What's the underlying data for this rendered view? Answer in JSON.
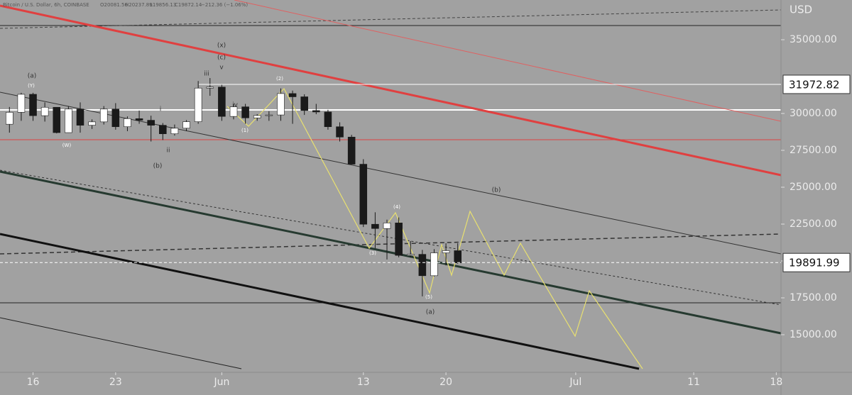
{
  "chart_data": {
    "type": "candlestick",
    "header": {
      "symbol": "Bitcoin / U.S. Dollar, 6h, COINBASE",
      "open": "O20081.56",
      "high": "H20237.89",
      "low": "L19856.13",
      "close": "C19872.14",
      "change": "−212.36 (−1.06%)"
    },
    "y_axis_label": "USD",
    "price_labels": [
      {
        "value": 31972.82,
        "label": "31972.82"
      },
      {
        "value": 19891.99,
        "label": "19891.99"
      }
    ],
    "annotations": [
      "(x)",
      "(c)",
      "v",
      "iii",
      "iv",
      "(2)",
      "(1)",
      "(3)",
      "(4)",
      "(5)",
      "(a)",
      "(b)",
      "(a)",
      "(b)",
      "(Y)",
      "(W)",
      "i",
      "ii"
    ],
    "x": [
      134,
      135,
      136,
      137,
      138,
      139,
      140,
      141,
      142,
      143,
      144,
      145,
      146,
      147,
      148,
      149,
      150,
      151,
      152,
      153,
      154,
      155,
      156,
      157,
      158,
      159,
      160,
      161,
      162,
      163,
      164,
      165,
      166,
      167,
      168,
      169,
      170,
      171,
      172
    ],
    "open": [
      29270,
      30080,
      31300,
      29850,
      30420,
      28700,
      30300,
      29200,
      29430,
      30300,
      29100,
      29650,
      29540,
      29200,
      28620,
      29000,
      29440,
      31720,
      31790,
      29800,
      30450,
      29700,
      29860,
      29900,
      31350,
      31130,
      30200,
      30100,
      29100,
      28400,
      26560,
      22490,
      22200,
      22580,
      20380,
      20450,
      19000,
      20550,
      20700
    ],
    "high": [
      30440,
      31400,
      31400,
      30750,
      30430,
      30500,
      30750,
      29600,
      30500,
      30700,
      29800,
      30200,
      29850,
      29350,
      29250,
      29550,
      32200,
      32400,
      31950,
      30650,
      30650,
      29950,
      30150,
      31700,
      31550,
      31300,
      30650,
      30250,
      29400,
      28550,
      26900,
      23300,
      22800,
      22950,
      21350,
      20750,
      20800,
      21200,
      21200
    ],
    "low": [
      28700,
      29500,
      29500,
      29450,
      28650,
      28700,
      28700,
      28950,
      29250,
      28900,
      28800,
      29300,
      28100,
      28200,
      28500,
      28800,
      29300,
      31200,
      29500,
      29600,
      29300,
      29500,
      29500,
      29500,
      29300,
      29900,
      29950,
      28900,
      28100,
      26550,
      22300,
      20850,
      20100,
      20250,
      20250,
      17600,
      18950,
      19700,
      19800
    ],
    "close": [
      30080,
      31300,
      29850,
      30420,
      28700,
      30300,
      29200,
      29430,
      30300,
      29100,
      29650,
      29540,
      29200,
      28620,
      29000,
      29440,
      31720,
      31790,
      29800,
      30450,
      29700,
      29860,
      29900,
      31350,
      31130,
      30200,
      30100,
      29100,
      28400,
      26560,
      22490,
      22200,
      22580,
      20380,
      20450,
      19000,
      20550,
      20700,
      19872
    ],
    "up_color": "#ffffff",
    "down_color": "#1a1a1a",
    "xlim": [
      133.2,
      199.4
    ],
    "xticks": [
      {
        "value": 136,
        "label": "16"
      },
      {
        "value": 143,
        "label": "23"
      },
      {
        "value": 152,
        "label": "Jun"
      },
      {
        "value": 164,
        "label": "13"
      },
      {
        "value": 171,
        "label": "20"
      },
      {
        "value": 182,
        "label": "Jul"
      },
      {
        "value": 192,
        "label": "11"
      },
      {
        "value": 199,
        "label": "18"
      }
    ],
    "ylim": [
      12452,
      37692
    ],
    "yticks": [
      {
        "value": 15000,
        "label": "15000.00"
      },
      {
        "value": 17500,
        "label": "17500.00"
      },
      {
        "value": 20000,
        "label": "20000.00"
      },
      {
        "value": 22500,
        "label": "22500.00"
      },
      {
        "value": 25000,
        "label": "25000.00"
      },
      {
        "value": 27500,
        "label": "27500.00"
      },
      {
        "value": 30000,
        "label": "30000.00"
      },
      {
        "value": 35000,
        "label": "35000.00"
      }
    ]
  }
}
